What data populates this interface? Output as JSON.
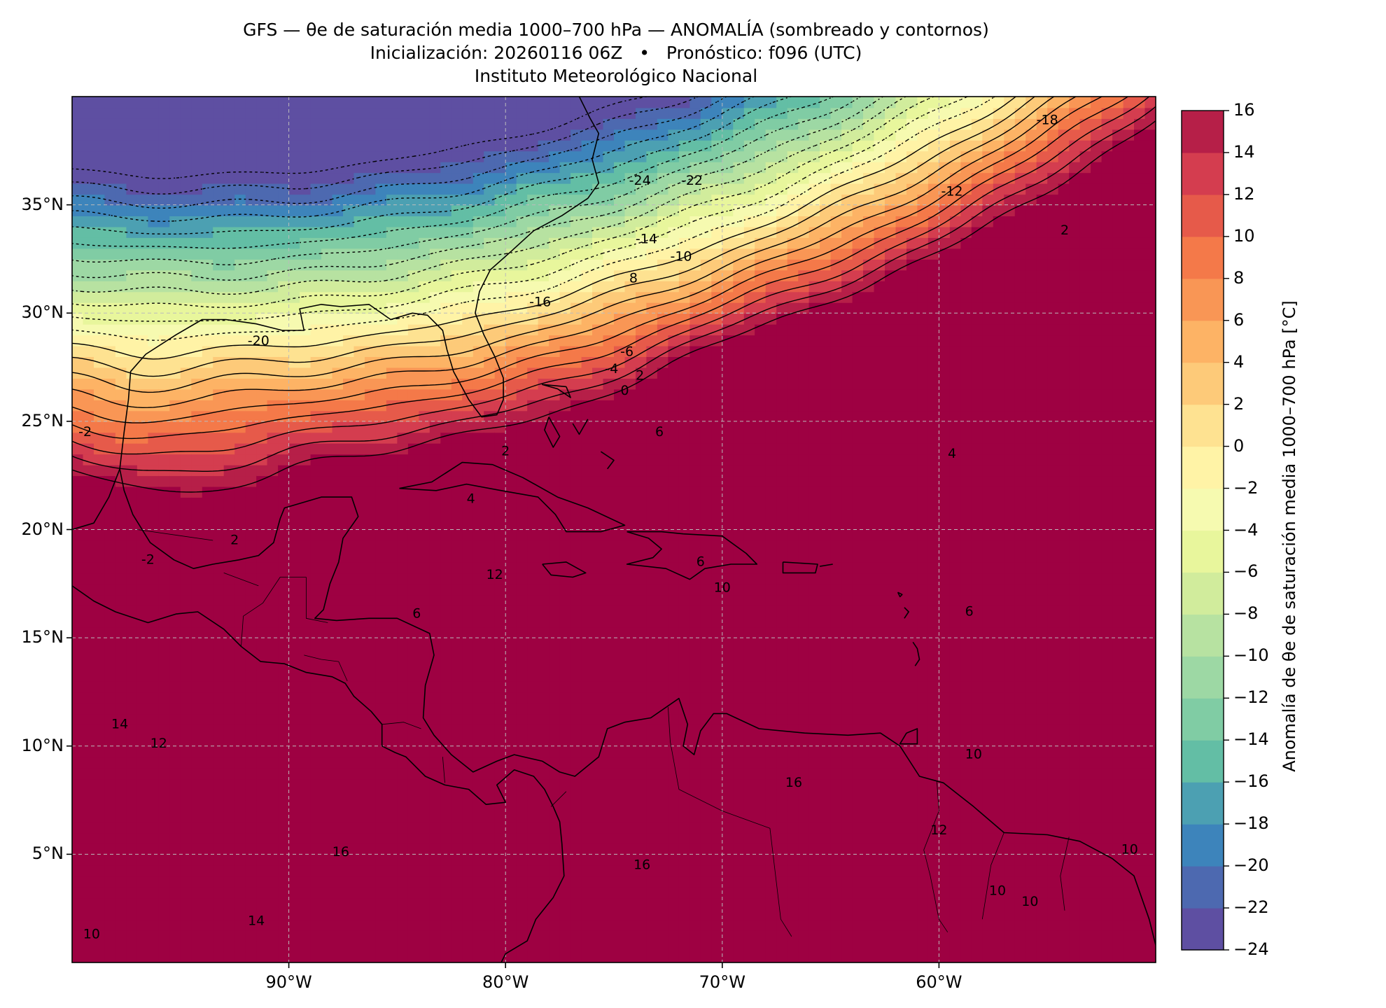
{
  "title": {
    "line1": "GFS — θe de saturación media 1000–700 hPa — ANOMALÍA (sombreado y contornos)",
    "line2": "Inicialización: 20260116 06Z   •   Pronóstico: f096 (UTC)",
    "line3": "Instituto Meteorológico Nacional"
  },
  "map": {
    "lon_range": [
      -100,
      -50
    ],
    "lat_range": [
      0,
      40
    ],
    "lat_ticks": [
      "35°N",
      "30°N",
      "25°N",
      "20°N",
      "15°N",
      "10°N",
      "5°N"
    ],
    "lon_ticks": [
      "90°W",
      "80°W",
      "70°W",
      "60°W"
    ],
    "gridlines": true
  },
  "colorbar": {
    "title": "Anomalía de θe de saturación media 1000–700 hPa [°C]",
    "ticks": [
      "16",
      "14",
      "12",
      "10",
      "8",
      "6",
      "4",
      "2",
      "0",
      "−2",
      "−4",
      "−6",
      "−8",
      "−10",
      "−12",
      "−14",
      "−16",
      "−18",
      "−20",
      "−22",
      "−24"
    ],
    "levels": [
      -24,
      -22,
      -20,
      -18,
      -16,
      -14,
      -12,
      -10,
      -8,
      -6,
      -4,
      -2,
      0,
      2,
      4,
      6,
      8,
      10,
      12,
      14,
      16
    ],
    "colors": [
      "#5e4fa2",
      "#4d69b0",
      "#3d84bb",
      "#4ca0b2",
      "#63bea5",
      "#80cca4",
      "#9dd8a4",
      "#b7e2a1",
      "#d1ec9c",
      "#e8f69c",
      "#f6fab0",
      "#fff3a6",
      "#fee291",
      "#fdca79",
      "#fdb365",
      "#f99655",
      "#f47949",
      "#e65a4a",
      "#d43d4f",
      "#b61f48",
      "#9e0142"
    ]
  },
  "contour_labels": [
    "-24",
    "-22",
    "-18",
    "-12",
    "-14",
    "-10",
    "8",
    "-16",
    "-20",
    "-6",
    "-4",
    "0",
    "2",
    "6",
    "2",
    "4",
    "-2",
    "2",
    "-2",
    "6",
    "12",
    "6",
    "10",
    "4",
    "6",
    "10",
    "12",
    "16",
    "16",
    "14",
    "14",
    "10",
    "10",
    "12",
    "16",
    "10",
    "2",
    "10"
  ]
}
